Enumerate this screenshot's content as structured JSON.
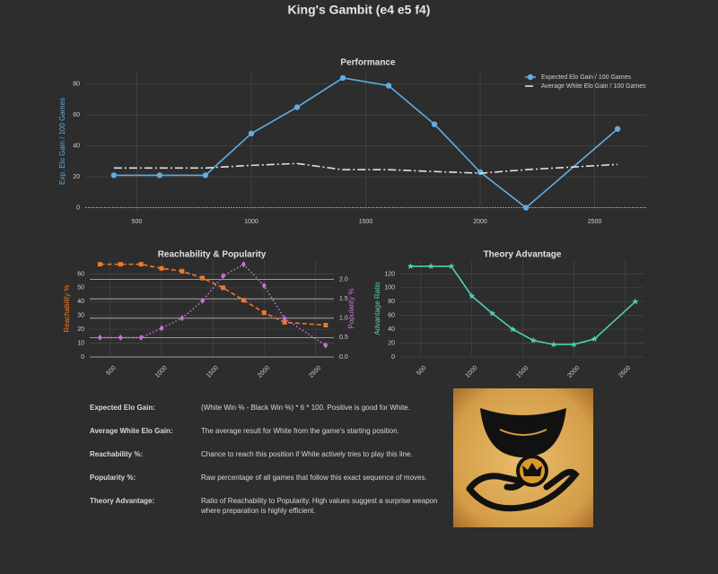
{
  "title": "King's Gambit (e4 e5 f4)",
  "chart_data": [
    {
      "type": "line",
      "title": "Performance",
      "ylabel": "Exp. Elo Gain / 100 Games",
      "x": [
        400,
        600,
        800,
        1000,
        1200,
        1400,
        1600,
        1800,
        2000,
        2200,
        2600
      ],
      "series": [
        {
          "name": "Expected Elo Gain / 100 Games",
          "color": "#5dade2",
          "marker": "circle",
          "dash": "solid",
          "values": [
            21,
            21,
            21,
            48,
            65,
            84,
            79,
            54,
            23,
            0,
            51
          ]
        },
        {
          "name": "Average White Elo Gain / 100 Games",
          "color": "#e0e0e0",
          "dash": "dashdot",
          "values": [
            25.7,
            25.7,
            25.7,
            27.4,
            28.6,
            24.6,
            24.6,
            23.4,
            22.3,
            24.6,
            28
          ]
        }
      ],
      "xlim": [
        275,
        2725
      ],
      "ylim": [
        -2,
        88
      ],
      "xticks": [
        500,
        1000,
        1500,
        2000,
        2500
      ],
      "yticks": [
        0,
        20,
        40,
        60,
        80
      ],
      "grid": true,
      "zeroline": true,
      "legend": "top-right"
    },
    {
      "type": "line",
      "title": "Reachability & Popularity",
      "ylabel": "Reachability %",
      "y2label": "Popularity %",
      "x": [
        400,
        600,
        800,
        1000,
        1200,
        1400,
        1600,
        1800,
        2000,
        2200,
        2600
      ],
      "series": [
        {
          "color": "#ec7a2c",
          "marker": "square",
          "dash": "dash",
          "values": [
            67,
            67,
            67,
            64,
            62,
            57,
            50,
            41,
            32,
            25,
            23
          ]
        },
        {
          "color": "#c972d8",
          "marker": "diamond",
          "dash": "dot",
          "axis": "y2",
          "values": [
            0.5,
            0.5,
            0.5,
            0.74,
            1.0,
            1.45,
            2.09,
            2.39,
            1.84,
            0.99,
            0.3
          ]
        }
      ],
      "xlim": [
        300,
        2680
      ],
      "ylim": [
        0,
        70
      ],
      "y2lim": [
        0,
        2.5
      ],
      "xticks": [
        500,
        1000,
        1500,
        2000,
        2500
      ],
      "yticks": [
        0,
        10,
        20,
        30,
        40,
        50,
        60
      ],
      "y2ticks": [
        {
          "value": 0,
          "label": "0.0"
        },
        0.5,
        {
          "value": 1,
          "label": "1.0"
        },
        1.5,
        {
          "value": 2,
          "label": "2.0"
        }
      ],
      "grid": true,
      "y2grid": true,
      "xtick_rotation": -45
    },
    {
      "type": "line",
      "title": "Theory Advantage",
      "ylabel": "Advantage Ratio",
      "x": [
        400,
        600,
        800,
        1000,
        1200,
        1400,
        1600,
        1800,
        2000,
        2200,
        2600
      ],
      "values": [
        131,
        131,
        131,
        88,
        63,
        40,
        24,
        18,
        18,
        26,
        80
      ],
      "color": "#4dd0b5",
      "marker": "star",
      "dash": "solid",
      "xlim": [
        300,
        2680
      ],
      "ylim": [
        0,
        140
      ],
      "xticks": [
        500,
        1000,
        1500,
        2000,
        2500
      ],
      "yticks": [
        0,
        20,
        40,
        60,
        80,
        100,
        120
      ],
      "grid": true,
      "xtick_rotation": -45
    }
  ],
  "definitions": [
    {
      "term": "Expected Elo Gain:",
      "text": "(White Win % - Black Win %) * 6 * 100. Positive is good for White."
    },
    {
      "term": "Average White Elo Gain:",
      "text": "The average result for White from the game's starting position."
    },
    {
      "term": "Reachability %:",
      "text": "Chance to reach this position if White actively tries to play this line."
    },
    {
      "term": "Popularity %:",
      "text": "Raw percentage of all games that follow this exact sequence of moves."
    },
    {
      "term": "Theory Advantage:",
      "text": "Ratio of Reachability to Popularity. High values suggest a surprise weapon where preparation is highly efficient."
    }
  ]
}
